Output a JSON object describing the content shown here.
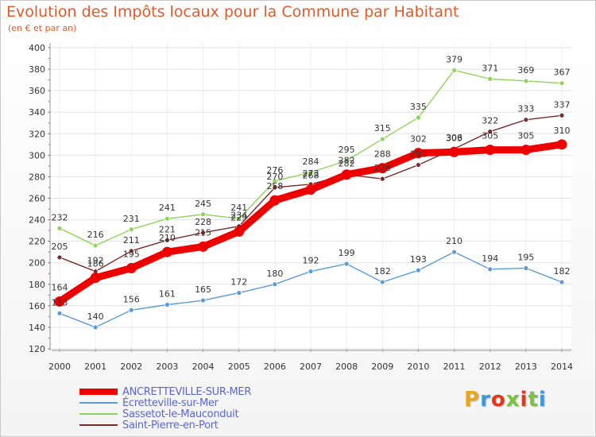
{
  "title": "Evolution des Impôts locaux pour la Commune par Habitant",
  "subtitle": "(en € et par an)",
  "logo": {
    "text": "Proxiti",
    "colors": [
      "#e8a81e",
      "#3a9bd8",
      "#e23a1a",
      "#7cc242",
      "#e23a1a",
      "#7cc242",
      "#3a9bd8"
    ]
  },
  "chart_data": {
    "type": "line",
    "x": [
      "2000",
      "2001",
      "2002",
      "2003",
      "2004",
      "2005",
      "2006",
      "2007",
      "2008",
      "2009",
      "2010",
      "2011",
      "2012",
      "2013",
      "2014"
    ],
    "ylim": [
      120,
      400
    ],
    "yticks": [
      120,
      140,
      160,
      180,
      200,
      220,
      240,
      260,
      280,
      300,
      320,
      340,
      360,
      380,
      400
    ],
    "grid": true,
    "legend_position": "bottom-left",
    "series": [
      {
        "name": "ANCRETTEVILLE-SUR-MER",
        "color": "#ee0000",
        "values": [
          164,
          186,
          195,
          210,
          215,
          229,
          258,
          268,
          282,
          288,
          302,
          303,
          305,
          305,
          310
        ]
      },
      {
        "name": "Écretteville-sur-Mer",
        "color": "#5b9bd5",
        "values": [
          153,
          140,
          156,
          161,
          165,
          172,
          180,
          192,
          199,
          182,
          193,
          210,
          194,
          195,
          182
        ]
      },
      {
        "name": "Sassetot-le-Mauconduit",
        "color": "#8fd45a",
        "values": [
          232,
          216,
          231,
          241,
          245,
          241,
          276,
          284,
          295,
          315,
          335,
          379,
          371,
          369,
          367
        ]
      },
      {
        "name": "Saint-Pierre-en-Port",
        "color": "#7a2a2a",
        "values": [
          205,
          192,
          211,
          221,
          228,
          234,
          270,
          273,
          282,
          278,
          291,
          306,
          322,
          333,
          337
        ]
      }
    ]
  }
}
